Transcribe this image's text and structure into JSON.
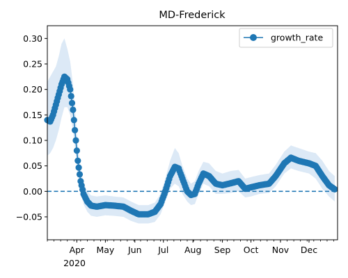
{
  "chart_data": {
    "type": "line",
    "title": "MD-Frederick",
    "xlabel": "",
    "ylabel": "",
    "year_label": "2020",
    "x_axis": {
      "type": "date",
      "range": [
        "2020-03-01",
        "2020-12-31"
      ],
      "ticks": [
        {
          "date": "2020-04-01",
          "label": "Apr"
        },
        {
          "date": "2020-05-01",
          "label": "May"
        },
        {
          "date": "2020-06-01",
          "label": "Jun"
        },
        {
          "date": "2020-07-01",
          "label": "Jul"
        },
        {
          "date": "2020-08-01",
          "label": "Aug"
        },
        {
          "date": "2020-09-01",
          "label": "Sep"
        },
        {
          "date": "2020-10-01",
          "label": "Oct"
        },
        {
          "date": "2020-11-01",
          "label": "Nov"
        },
        {
          "date": "2020-12-01",
          "label": "Dec"
        }
      ]
    },
    "y_axis": {
      "range": [
        -0.095,
        0.325
      ],
      "ticks": [
        -0.05,
        0.0,
        0.05,
        0.1,
        0.15,
        0.2,
        0.25,
        0.3
      ],
      "tick_labels": [
        "−0.05",
        "0.00",
        "0.05",
        "0.10",
        "0.15",
        "0.20",
        "0.25",
        "0.30"
      ]
    },
    "grid": false,
    "legend": {
      "position": "top-right",
      "entries": [
        "growth_rate"
      ]
    },
    "colors": {
      "line": "#1f77b4",
      "band": "#dce9f6",
      "zero_line": "#1f77b4"
    },
    "reference_line": {
      "y": 0.0,
      "style": "dashed"
    },
    "series": [
      {
        "name": "growth_rate",
        "keypoints": [
          [
            "2020-03-01",
            0.14,
            0.07,
            0.215
          ],
          [
            "2020-03-04",
            0.137,
            0.075,
            0.225
          ],
          [
            "2020-03-07",
            0.15,
            0.085,
            0.235
          ],
          [
            "2020-03-10",
            0.17,
            0.1,
            0.245
          ],
          [
            "2020-03-13",
            0.19,
            0.12,
            0.265
          ],
          [
            "2020-03-16",
            0.21,
            0.145,
            0.29
          ],
          [
            "2020-03-19",
            0.225,
            0.165,
            0.3
          ],
          [
            "2020-03-22",
            0.22,
            0.165,
            0.28
          ],
          [
            "2020-03-25",
            0.2,
            0.15,
            0.255
          ],
          [
            "2020-03-28",
            0.16,
            0.12,
            0.21
          ],
          [
            "2020-03-31",
            0.1,
            0.07,
            0.14
          ],
          [
            "2020-04-02",
            0.06,
            0.035,
            0.09
          ],
          [
            "2020-04-05",
            0.02,
            0.0,
            0.045
          ],
          [
            "2020-04-08",
            -0.005,
            -0.025,
            0.015
          ],
          [
            "2020-04-12",
            -0.02,
            -0.04,
            0.0
          ],
          [
            "2020-04-16",
            -0.028,
            -0.048,
            -0.008
          ],
          [
            "2020-04-22",
            -0.03,
            -0.05,
            -0.01
          ],
          [
            "2020-05-01",
            -0.027,
            -0.047,
            -0.008
          ],
          [
            "2020-05-10",
            -0.028,
            -0.048,
            -0.01
          ],
          [
            "2020-05-20",
            -0.03,
            -0.05,
            -0.012
          ],
          [
            "2020-05-28",
            -0.038,
            -0.058,
            -0.02
          ],
          [
            "2020-06-05",
            -0.045,
            -0.063,
            -0.027
          ],
          [
            "2020-06-15",
            -0.045,
            -0.063,
            -0.027
          ],
          [
            "2020-06-22",
            -0.04,
            -0.06,
            -0.022
          ],
          [
            "2020-06-28",
            -0.025,
            -0.045,
            -0.005
          ],
          [
            "2020-07-03",
            0.0,
            -0.02,
            0.025
          ],
          [
            "2020-07-08",
            0.03,
            0.005,
            0.06
          ],
          [
            "2020-07-13",
            0.048,
            0.015,
            0.085
          ],
          [
            "2020-07-17",
            0.045,
            0.01,
            0.075
          ],
          [
            "2020-07-21",
            0.025,
            -0.005,
            0.05
          ],
          [
            "2020-07-26",
            0.0,
            -0.02,
            0.025
          ],
          [
            "2020-07-30",
            -0.007,
            -0.027,
            0.015
          ],
          [
            "2020-08-03",
            -0.005,
            -0.025,
            0.02
          ],
          [
            "2020-08-07",
            0.015,
            -0.005,
            0.04
          ],
          [
            "2020-08-12",
            0.035,
            0.015,
            0.058
          ],
          [
            "2020-08-18",
            0.03,
            0.01,
            0.055
          ],
          [
            "2020-08-25",
            0.015,
            -0.005,
            0.04
          ],
          [
            "2020-09-01",
            0.012,
            -0.005,
            0.035
          ],
          [
            "2020-09-10",
            0.016,
            -0.003,
            0.04
          ],
          [
            "2020-09-18",
            0.02,
            0.0,
            0.042
          ],
          [
            "2020-09-25",
            0.005,
            -0.012,
            0.025
          ],
          [
            "2020-10-01",
            0.008,
            -0.01,
            0.028
          ],
          [
            "2020-10-10",
            0.012,
            -0.005,
            0.032
          ],
          [
            "2020-10-20",
            0.015,
            -0.003,
            0.035
          ],
          [
            "2020-10-27",
            0.03,
            0.01,
            0.052
          ],
          [
            "2020-11-05",
            0.055,
            0.035,
            0.078
          ],
          [
            "2020-11-12",
            0.066,
            0.045,
            0.09
          ],
          [
            "2020-11-20",
            0.06,
            0.04,
            0.085
          ],
          [
            "2020-12-01",
            0.055,
            0.035,
            0.078
          ],
          [
            "2020-12-08",
            0.05,
            0.025,
            0.075
          ],
          [
            "2020-12-15",
            0.03,
            0.005,
            0.06
          ],
          [
            "2020-12-22",
            0.012,
            -0.01,
            0.04
          ],
          [
            "2020-12-28",
            0.004,
            -0.02,
            0.03
          ]
        ]
      }
    ]
  }
}
